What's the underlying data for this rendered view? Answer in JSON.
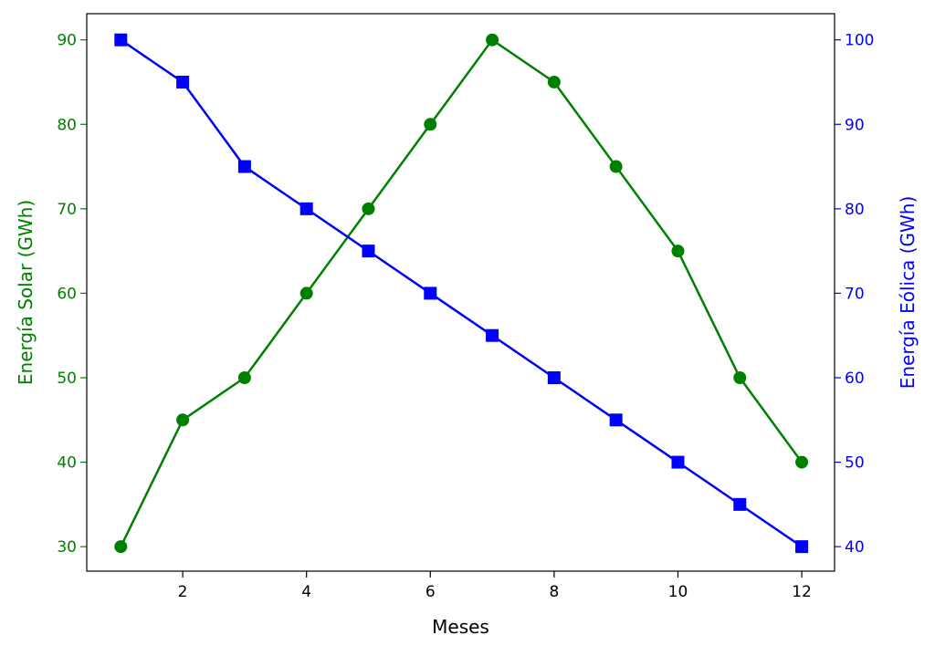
{
  "chart_data": {
    "type": "line",
    "title": "",
    "xlabel": "Meses",
    "x": [
      1,
      2,
      3,
      4,
      5,
      6,
      7,
      8,
      9,
      10,
      11,
      12
    ],
    "xlim": [
      0.45,
      12.53
    ],
    "xticks": [
      2,
      4,
      6,
      8,
      10,
      12
    ],
    "grid": false,
    "series": [
      {
        "axis": "left",
        "ylabel": "Energía Solar (GWh)",
        "color": "#008000",
        "marker": "circle",
        "values": [
          30,
          45,
          50,
          60,
          70,
          80,
          90,
          85,
          75,
          65,
          50,
          40
        ],
        "ylim": [
          27.1,
          93.1
        ],
        "yticks": [
          30,
          40,
          50,
          60,
          70,
          80,
          90
        ]
      },
      {
        "axis": "right",
        "ylabel": "Energía Eólica (GWh)",
        "color": "#0000ff",
        "marker": "square",
        "values": [
          100,
          95,
          85,
          80,
          75,
          70,
          65,
          60,
          55,
          50,
          45,
          40
        ],
        "ylim": [
          37.1,
          103.1
        ],
        "yticks": [
          40,
          50,
          60,
          70,
          80,
          90,
          100
        ]
      }
    ]
  }
}
